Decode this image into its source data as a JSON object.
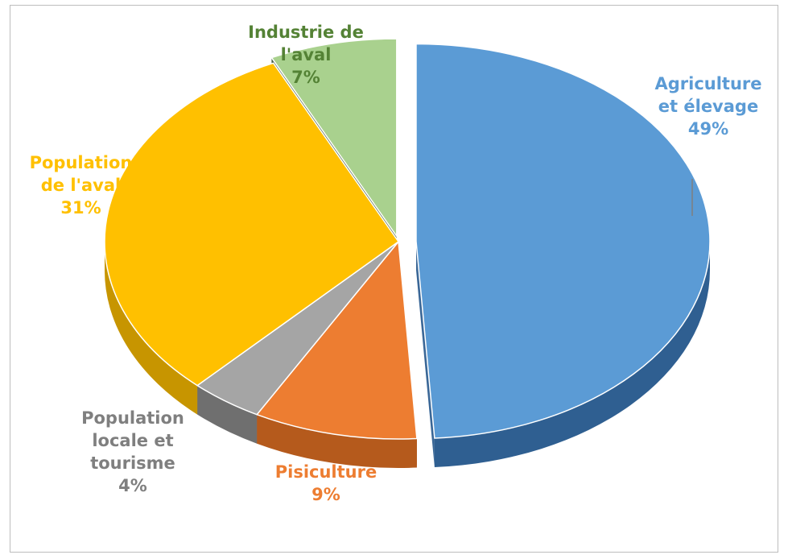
{
  "chart_data": {
    "type": "pie",
    "title": "",
    "slices": [
      {
        "label_lines": [
          "Agriculture",
          "et élevage"
        ],
        "pct_label": "49%",
        "value": 49,
        "color": "#5b9bd5",
        "dark": "#2f5f91"
      },
      {
        "label_lines": [
          "Pisiculture"
        ],
        "pct_label": "9%",
        "value": 9,
        "color": "#ed7d31",
        "dark": "#b55a1c"
      },
      {
        "label_lines": [
          "Population",
          "locale et",
          "tourisme"
        ],
        "pct_label": "4%",
        "value": 4,
        "color": "#a5a5a5",
        "dark": "#6f6f6f"
      },
      {
        "label_lines": [
          "Population",
          "de l'aval"
        ],
        "pct_label": "31%",
        "value": 31,
        "color": "#ffc000",
        "dark": "#c79500"
      },
      {
        "label_lines": [
          "Industrie de",
          "l'aval"
        ],
        "pct_label": "7%",
        "value": 7,
        "color": "#a9d18e",
        "dark": "#40573a"
      }
    ],
    "label_colors": [
      "#5b9bd5",
      "#ed7d31",
      "#7f7f7f",
      "#ffc000",
      "#548235"
    ]
  }
}
